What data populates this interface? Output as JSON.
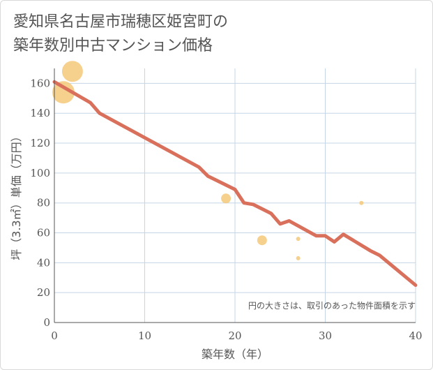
{
  "title_lines": [
    "愛知県名古屋市瑞穂区姫宮町の",
    "築年数別中古マンション価格"
  ],
  "colors": {
    "line": "#d9705c",
    "bubble": "#f5c97a",
    "grid": "#c5d5e5",
    "axis": "#555555"
  },
  "chart_data": {
    "type": "scatter",
    "title": "愛知県名古屋市瑞穂区姫宮町の築年数別中古マンション価格",
    "xlabel": "築年数（年）",
    "ylabel": "坪（3.3㎡）単価（万円）",
    "xlim": [
      0,
      40
    ],
    "ylim": [
      0,
      170
    ],
    "xticks": [
      0,
      10,
      20,
      30,
      40
    ],
    "yticks": [
      0,
      20,
      40,
      60,
      80,
      100,
      120,
      140,
      160
    ],
    "grid": true,
    "note": "円の大きさは、取引のあった物件面積を示す",
    "series": [
      {
        "kind": "line",
        "x": [
          0,
          4,
          5,
          16,
          17,
          20,
          21,
          22,
          24,
          25,
          26,
          29,
          30,
          31,
          32,
          35,
          36,
          40
        ],
        "y": [
          161,
          147,
          140,
          104,
          98,
          89,
          80,
          79,
          73,
          66,
          68,
          58,
          58,
          54,
          59,
          48,
          45,
          25
        ]
      },
      {
        "kind": "bubble",
        "points": [
          {
            "x": 1,
            "y": 154,
            "size": 3.2
          },
          {
            "x": 2,
            "y": 168,
            "size": 3.0
          },
          {
            "x": 19,
            "y": 83,
            "size": 1.4
          },
          {
            "x": 23,
            "y": 55,
            "size": 1.4
          },
          {
            "x": 27,
            "y": 56,
            "size": 0.6
          },
          {
            "x": 27,
            "y": 43,
            "size": 0.6
          },
          {
            "x": 34,
            "y": 80,
            "size": 0.6
          }
        ]
      }
    ]
  }
}
